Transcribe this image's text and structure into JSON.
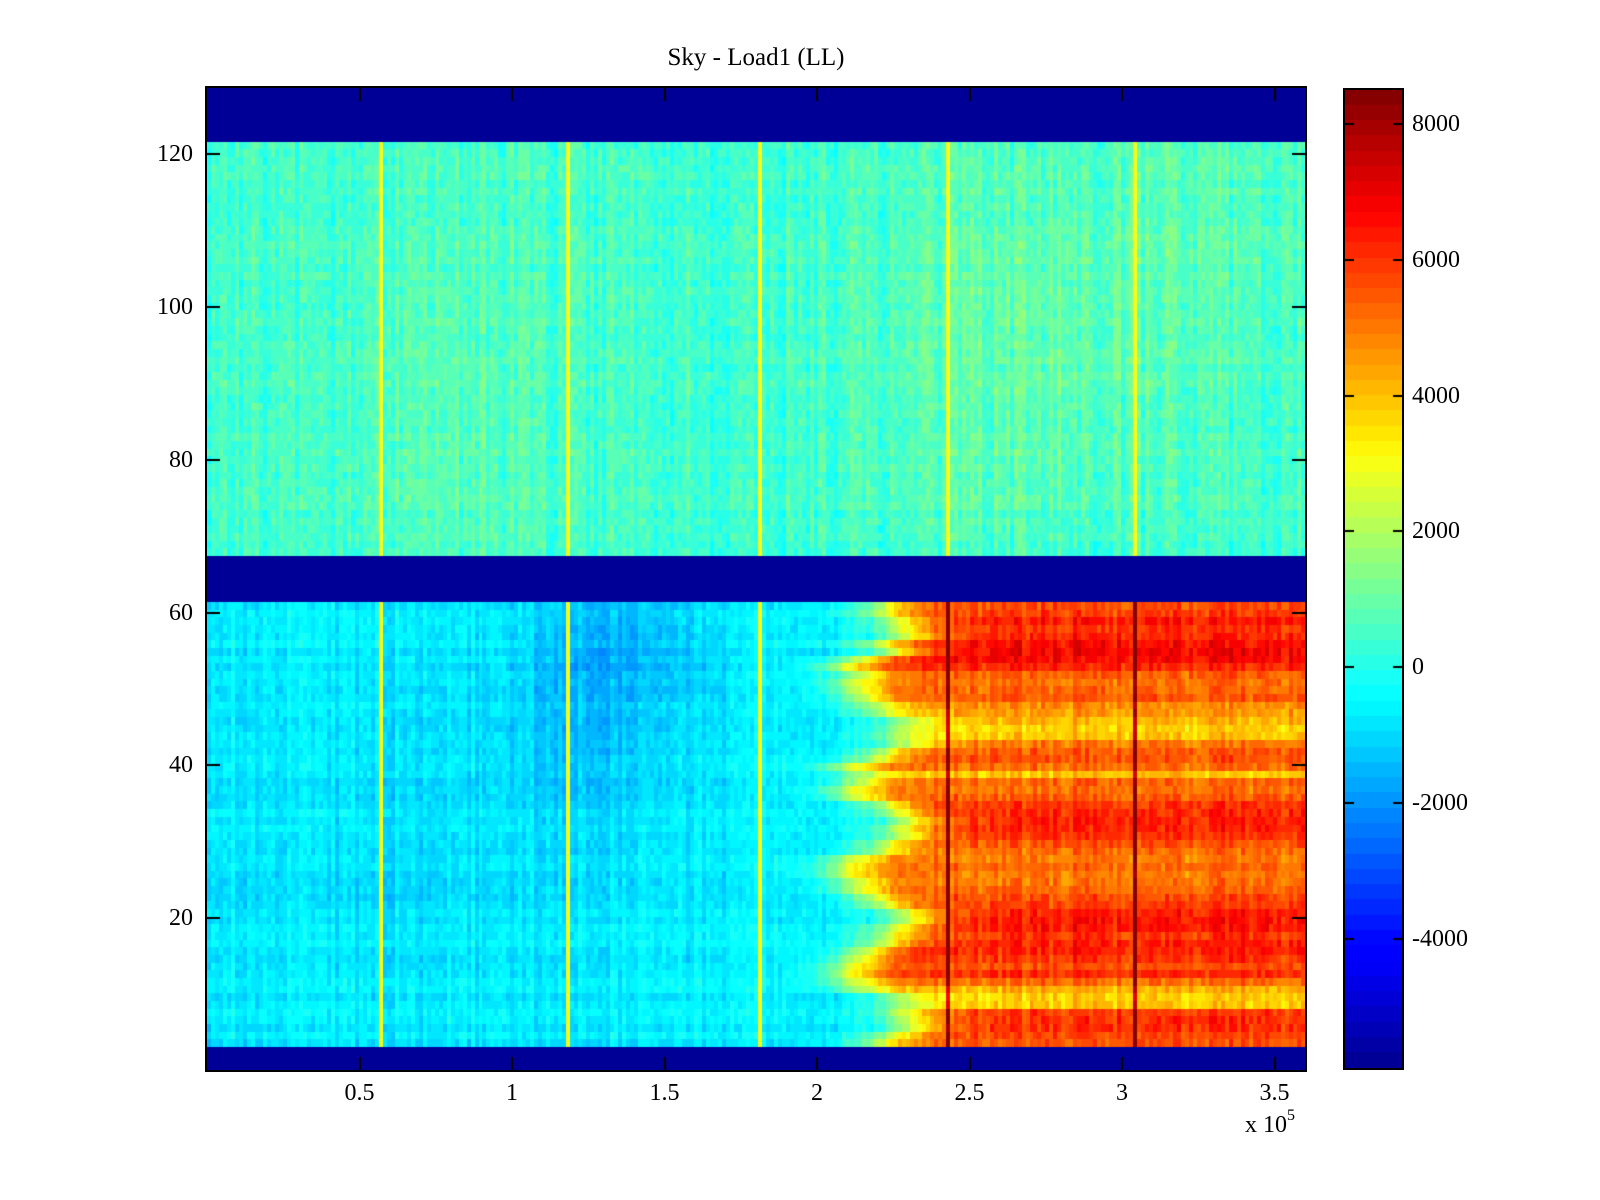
{
  "title": "Sky - Load1 (LL)",
  "x_axis": {
    "ticks": [
      {
        "label": "0.5",
        "value": 50000
      },
      {
        "label": "1",
        "value": 100000
      },
      {
        "label": "1.5",
        "value": 150000
      },
      {
        "label": "2",
        "value": 200000
      },
      {
        "label": "2.5",
        "value": 250000
      },
      {
        "label": "3",
        "value": 300000
      },
      {
        "label": "3.5",
        "value": 350000
      }
    ],
    "multiplier_base": "x 10",
    "multiplier_exponent": "5",
    "range": [
      0,
      360000
    ]
  },
  "y_axis": {
    "ticks": [
      {
        "label": "20",
        "value": 20
      },
      {
        "label": "40",
        "value": 40
      },
      {
        "label": "60",
        "value": 60
      },
      {
        "label": "80",
        "value": 80
      },
      {
        "label": "100",
        "value": 100
      },
      {
        "label": "120",
        "value": 120
      }
    ],
    "range": [
      0.1,
      128.7
    ]
  },
  "colorbar": {
    "ticks": [
      {
        "label": "8000",
        "value": 8000
      },
      {
        "label": "6000",
        "value": 6000
      },
      {
        "label": "4000",
        "value": 4000
      },
      {
        "label": "2000",
        "value": 2000
      },
      {
        "label": "0",
        "value": 0
      },
      {
        "label": "-2000",
        "value": -2000
      },
      {
        "label": "-4000",
        "value": -4000
      }
    ],
    "range": [
      -5900,
      8500
    ],
    "steps": 64,
    "colormap": "jet"
  },
  "colors": {
    "background": "#ffffff",
    "frame": "#000000",
    "masked_band": "#000090",
    "text": "#000000"
  },
  "chart_data": {
    "type": "heatmap",
    "title": "Sky - Load1 (LL)",
    "x_range": [
      0,
      360000
    ],
    "y_range": [
      0.1,
      128.7
    ],
    "color_range": [
      -5900,
      8500
    ],
    "colormap": "jet",
    "colormap_levels": 64,
    "grid_cols": 275,
    "grid_rows": 128,
    "seed": 7,
    "masked_row_bands": [
      [
        1,
        3
      ],
      [
        62,
        67
      ],
      [
        122,
        128
      ]
    ],
    "masked_value": -5900,
    "vertical_lines": {
      "x_values": [
        57000,
        119000,
        181000,
        243000,
        305000
      ],
      "value_in_cool": 3000,
      "boost_in_hot": 3300
    },
    "regions": {
      "upper": {
        "rows": [
          68,
          121
        ],
        "mean": 400,
        "col_noise": 430,
        "row_noise": 150,
        "cell_noise": 380,
        "patches": [
          {
            "x": 265000,
            "row": 96,
            "amp": 480,
            "sx": 38000,
            "sy": 18
          },
          {
            "x": 75000,
            "row": 88,
            "amp": 280,
            "sx": 28000,
            "sy": 22
          },
          {
            "x": 330000,
            "row": 110,
            "amp": 260,
            "sx": 30000,
            "sy": 15
          }
        ]
      },
      "lower_left": {
        "rows": [
          4,
          61
        ],
        "mean": -700,
        "col_noise": 330,
        "row_noise": 220,
        "cell_noise": 300,
        "patches": [
          {
            "x": 128000,
            "row": 46,
            "amp": -650,
            "sx": 22000,
            "sy": 11
          },
          {
            "x": 140000,
            "row": 57,
            "amp": -550,
            "sx": 18000,
            "sy": 5
          },
          {
            "x": 60000,
            "row": 30,
            "amp": -250,
            "sx": 30000,
            "sy": 15
          }
        ]
      },
      "lower_right": {
        "rows": [
          4,
          61
        ],
        "onset_x": 220000,
        "onset_wave": 9000,
        "onset_jitter": 5000,
        "onset_width": 6500,
        "col_noise": 400,
        "cell_noise": 450,
        "row_profile_start_row": 4,
        "row_profile": [
          5600,
          5800,
          6100,
          6100,
          5900,
          3900,
          3800,
          4200,
          5200,
          6100,
          5600,
          6000,
          6300,
          6300,
          6000,
          6400,
          6500,
          6300,
          5900,
          5700,
          5300,
          5100,
          5000,
          5200,
          5000,
          5200,
          5600,
          6000,
          6200,
          6300,
          6200,
          6000,
          5400,
          5100,
          5300,
          3900,
          5200,
          5600,
          5400,
          5000,
          3900,
          3700,
          4100,
          4500,
          4700,
          5500,
          5300,
          5100,
          5400,
          6200,
          6700,
          6800,
          6600,
          6200,
          6000,
          6400,
          5900,
          5700
        ]
      }
    }
  }
}
